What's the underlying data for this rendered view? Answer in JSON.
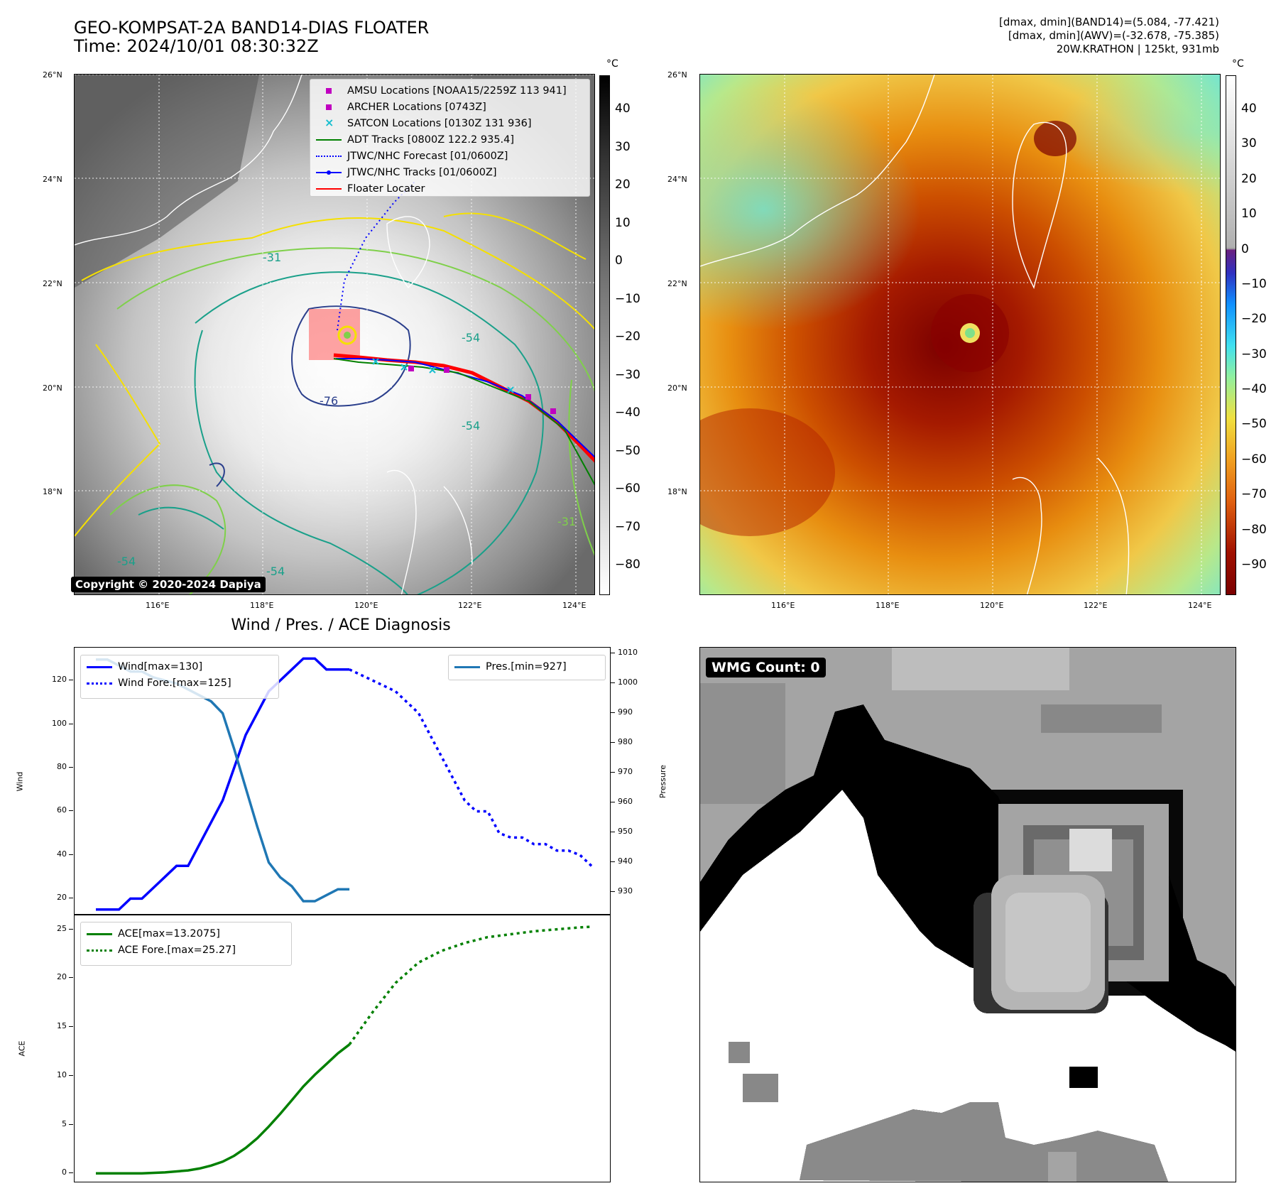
{
  "header": {
    "title_line1": "GEO-KOMPSAT-2A BAND14-DIAS FLOATER",
    "title_line2": "Time: 2024/10/01 08:30:32Z",
    "info_line1": "[dmax, dmin](BAND14)=(5.084, -77.421)",
    "info_line2": "[dmax, dmin](AWV)=(-32.678, -75.385)",
    "info_line3": "20W.KRATHON | 125kt, 931mb"
  },
  "map": {
    "lat_labels": [
      "26°N",
      "24°N",
      "22°N",
      "20°N",
      "18°N"
    ],
    "lon_labels": [
      "116°E",
      "118°E",
      "120°E",
      "122°E",
      "124°E"
    ],
    "contour_labels": [
      "-31",
      "-54",
      "-76",
      "-54",
      "-31",
      "-54",
      "-54"
    ],
    "copyright": "Copyright © 2020-2024 Dapiya",
    "legend": [
      {
        "label": "AMSU Locations [NOAA15/2259Z 113 941]",
        "color": "#c000c0",
        "icon": "square-marker"
      },
      {
        "label": "ARCHER Locations [0743Z]",
        "color": "#c000c0",
        "icon": "square-marker"
      },
      {
        "label": "SATCON Locations [0130Z 131 936]",
        "color": "#17becf",
        "icon": "x-marker"
      },
      {
        "label": "ADT Tracks [0800Z 122.2 935.4]",
        "color": "#008000",
        "icon": "solid-line"
      },
      {
        "label": "JTWC/NHC Forecast [01/0600Z]",
        "color": "#0000ff",
        "icon": "dotted-line"
      },
      {
        "label": "JTWC/NHC Tracks [01/0600Z]",
        "color": "#0000ff",
        "icon": "dot-line"
      },
      {
        "label": "Floater Locater",
        "color": "#ff0000",
        "icon": "solid-line"
      }
    ],
    "colorbar1_unit": "°C",
    "colorbar1_ticks": [
      "40",
      "30",
      "20",
      "10",
      "0",
      "−10",
      "−20",
      "−30",
      "−40",
      "−50",
      "−60",
      "−70",
      "−80"
    ],
    "colorbar2_unit": "°C",
    "colorbar2_ticks": [
      "40",
      "30",
      "20",
      "10",
      "0",
      "−10",
      "−20",
      "−30",
      "−40",
      "−50",
      "−60",
      "−70",
      "−80",
      "−90"
    ]
  },
  "wmg": {
    "label": "WMG Count: 0"
  },
  "chart_data": [
    {
      "type": "line",
      "title": "Wind / Pres. / ACE Diagnosis",
      "xlabel": "",
      "ylabel": "Wind",
      "y2label": "Pressure",
      "ylim": [
        12,
        135
      ],
      "y2lim": [
        922,
        1012
      ],
      "yticks": [
        20,
        40,
        60,
        80,
        100,
        120
      ],
      "y2ticks": [
        930,
        940,
        950,
        960,
        970,
        980,
        990,
        1000,
        1010
      ],
      "x": [
        0,
        1,
        2,
        3,
        4,
        5,
        6,
        7,
        8,
        9,
        10,
        11,
        12,
        13,
        14,
        15,
        16,
        17,
        18,
        19,
        20,
        21,
        22,
        23,
        24,
        25,
        26,
        27,
        28,
        29,
        30,
        31,
        32,
        33,
        34,
        35,
        36,
        37,
        38,
        39,
        40,
        41,
        42,
        43
      ],
      "series": [
        {
          "name": "Wind[max=130]",
          "axis": "left",
          "color": "#0000ff",
          "style": "solid",
          "x": [
            0,
            1,
            2,
            3,
            4,
            5,
            6,
            7,
            8,
            9,
            10,
            11,
            12,
            13,
            14,
            15,
            16,
            17,
            18,
            19,
            20,
            21,
            22
          ],
          "values": [
            15,
            15,
            15,
            20,
            20,
            25,
            30,
            35,
            35,
            45,
            55,
            65,
            80,
            95,
            105,
            115,
            120,
            125,
            130,
            130,
            125,
            125,
            125
          ]
        },
        {
          "name": "Wind Fore.[max=125]",
          "axis": "left",
          "color": "#0000ff",
          "style": "dotted",
          "x": [
            22,
            24,
            26,
            28,
            30,
            31,
            32,
            33,
            34,
            35,
            36,
            37,
            38,
            39,
            40,
            41,
            42,
            43
          ],
          "values": [
            125,
            120,
            115,
            105,
            85,
            75,
            65,
            60,
            60,
            50,
            48,
            48,
            45,
            45,
            42,
            42,
            40,
            35
          ]
        },
        {
          "name": "Pres.[min=927]",
          "axis": "right",
          "color": "#1f77b4",
          "style": "solid",
          "x": [
            0,
            1,
            2,
            3,
            4,
            5,
            6,
            7,
            8,
            9,
            10,
            11,
            12,
            13,
            14,
            15,
            16,
            17,
            18,
            19,
            20,
            21,
            22
          ],
          "values": [
            1008,
            1008,
            1006,
            1004,
            1004,
            1002,
            1001,
            1000,
            998,
            996,
            994,
            990,
            978,
            965,
            952,
            940,
            935,
            932,
            927,
            927,
            929,
            931,
            931
          ]
        }
      ]
    },
    {
      "type": "line",
      "title": "",
      "xlabel": "",
      "ylabel": "ACE",
      "ylim": [
        -1,
        26.5
      ],
      "yticks": [
        0,
        5,
        10,
        15,
        20,
        25
      ],
      "series": [
        {
          "name": "ACE[max=13.2075]",
          "color": "#008000",
          "style": "solid",
          "x": [
            0,
            2,
            4,
            6,
            8,
            9,
            10,
            11,
            12,
            13,
            14,
            15,
            16,
            17,
            18,
            19,
            20,
            21,
            22
          ],
          "values": [
            0,
            0,
            0,
            0.1,
            0.3,
            0.5,
            0.8,
            1.2,
            1.8,
            2.6,
            3.6,
            4.8,
            6.1,
            7.5,
            8.9,
            10.1,
            11.2,
            12.3,
            13.2
          ]
        },
        {
          "name": "ACE Fore.[max=25.27]",
          "color": "#008000",
          "style": "dotted",
          "x": [
            22,
            24,
            26,
            28,
            30,
            32,
            34,
            36,
            38,
            40,
            42,
            43
          ],
          "values": [
            13.2,
            16.5,
            19.5,
            21.6,
            22.8,
            23.6,
            24.2,
            24.5,
            24.8,
            25.0,
            25.2,
            25.27
          ]
        }
      ]
    }
  ]
}
